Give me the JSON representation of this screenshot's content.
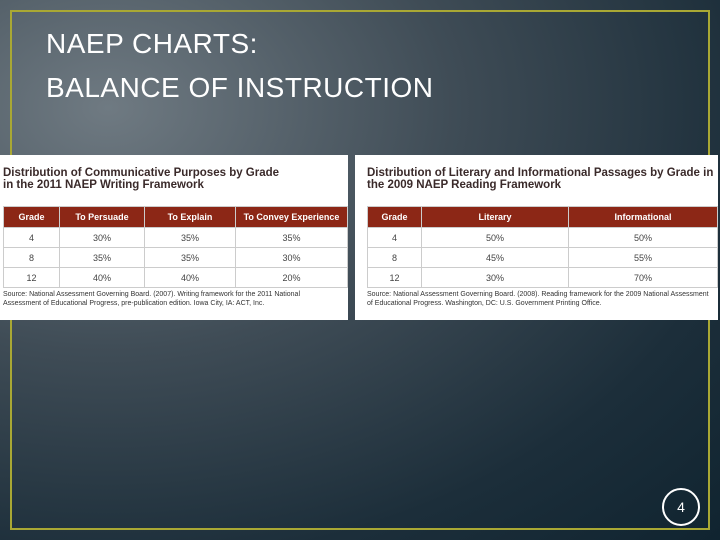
{
  "slide": {
    "title_lines": [
      "NAEP CHARTS:",
      "BALANCE OF INSTRUCTION"
    ],
    "page_number": "4"
  },
  "tables": [
    {
      "title_lines": [
        "Distribution of Communicative Purposes by Grade",
        "in the 2011 NAEP Writing Framework"
      ],
      "headers": [
        "Grade",
        "To Persuade",
        "To Explain",
        "To Convey Experience"
      ],
      "rows": [
        [
          "4",
          "30%",
          "35%",
          "35%"
        ],
        [
          "8",
          "35%",
          "35%",
          "30%"
        ],
        [
          "12",
          "40%",
          "40%",
          "20%"
        ]
      ],
      "source": "Source: National Assessment Governing Board. (2007). Writing framework for the 2011 National Assessment of Educational Progress, pre-publication edition. Iowa City, IA: ACT, Inc."
    },
    {
      "title_lines": [
        "Distribution of Literary and Informational Passages by Grade in",
        "the 2009 NAEP Reading Framework"
      ],
      "headers": [
        "Grade",
        "Literary",
        "Informational"
      ],
      "rows": [
        [
          "4",
          "50%",
          "50%"
        ],
        [
          "8",
          "45%",
          "55%"
        ],
        [
          "12",
          "30%",
          "70%"
        ]
      ],
      "source": "Source: National Assessment Governing Board. (2008). Reading framework for the 2009 National Assessment of Educational Progress. Washington, DC: U.S. Government Printing Office."
    }
  ]
}
